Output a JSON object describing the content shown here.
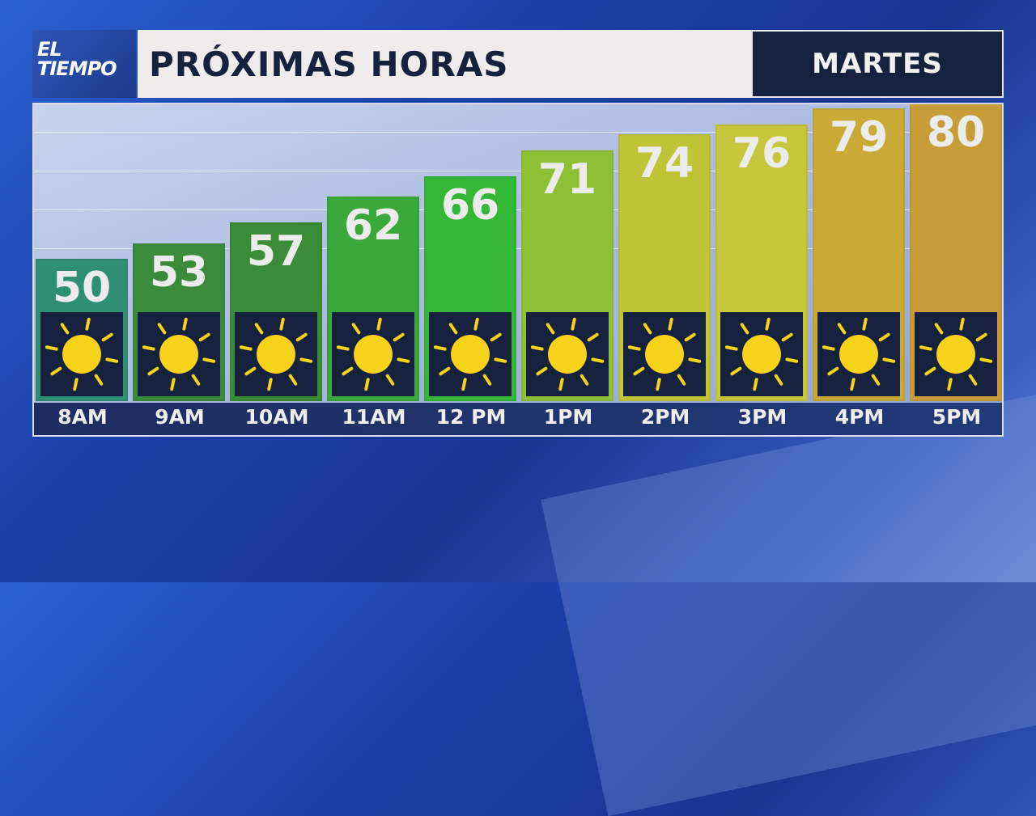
{
  "logo": {
    "line1": "EL",
    "line2": "TIEMPO"
  },
  "header": {
    "title": "PRÓXIMAS HORAS",
    "day": "MARTES"
  },
  "chart_data": {
    "type": "bar",
    "title": "PRÓXIMAS HORAS",
    "categories": [
      "8AM",
      "9AM",
      "10AM",
      "11AM",
      "12 PM",
      "1PM",
      "2PM",
      "3PM",
      "4PM",
      "5PM"
    ],
    "values": [
      50,
      53,
      57,
      62,
      66,
      71,
      74,
      76,
      79,
      80
    ],
    "conditions": [
      "sunny",
      "sunny",
      "sunny",
      "sunny",
      "sunny",
      "sunny",
      "sunny",
      "sunny",
      "sunny",
      "sunny"
    ],
    "colors": [
      "#2f8f72",
      "#3a8b3a",
      "#3a8d36",
      "#3aa83b",
      "#34b736",
      "#8ec036",
      "#bec536",
      "#c6c73c",
      "#c9aa36",
      "#c99c3a"
    ],
    "icon": "sun-icon",
    "icon_color": "#f7d21a"
  }
}
